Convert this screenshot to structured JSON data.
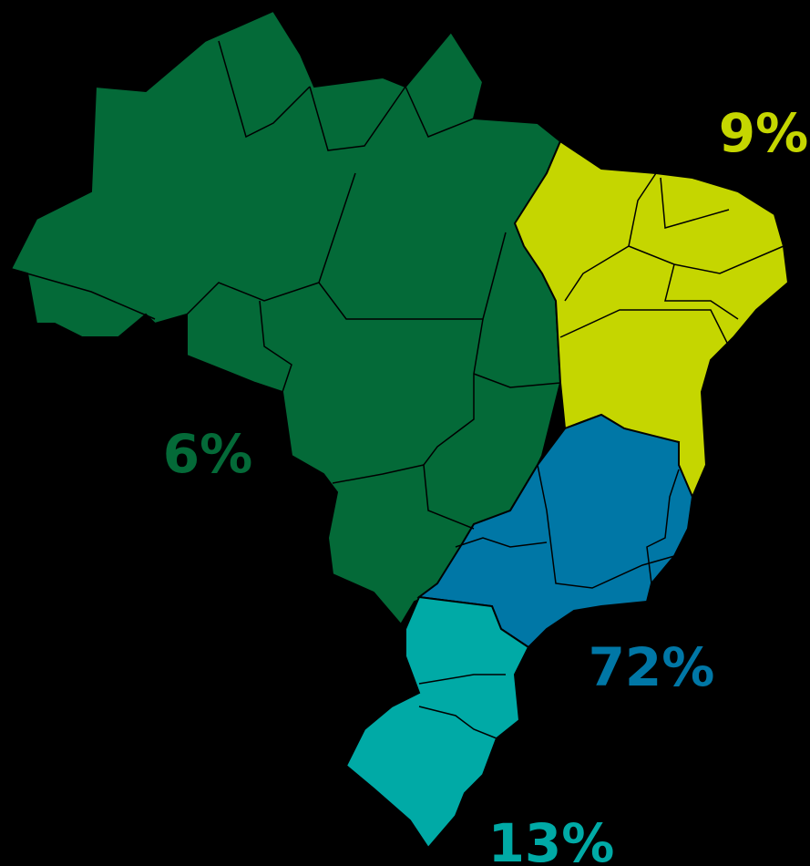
{
  "regions": [
    {
      "label": "6%",
      "color": "#046a38"
    },
    {
      "label": "9%",
      "color": "#c5d600"
    },
    {
      "label": "72%",
      "color": "#0077a6"
    },
    {
      "label": "13%",
      "color": "#00aaa6"
    }
  ]
}
